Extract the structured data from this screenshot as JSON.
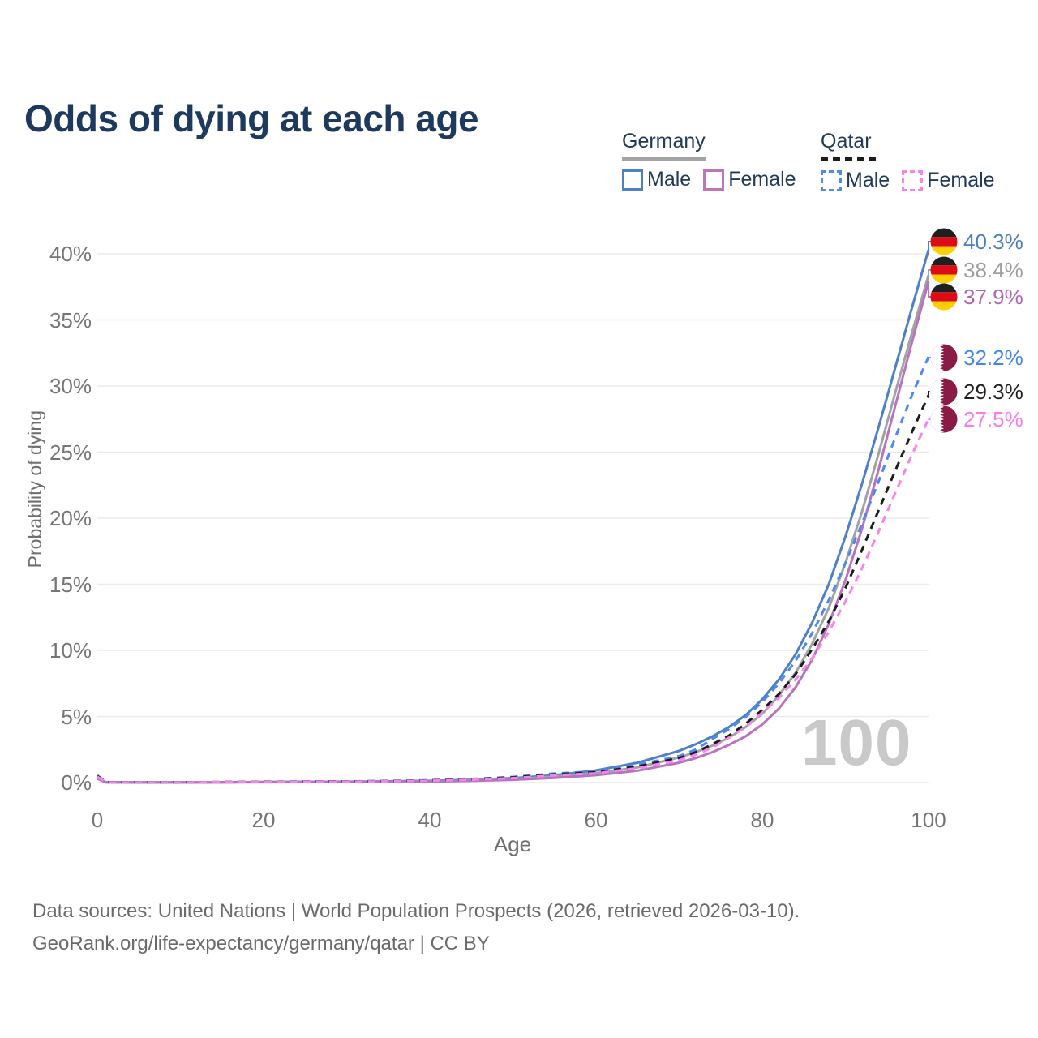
{
  "title": "Odds of dying at each age",
  "watermark_age": "100",
  "legend": {
    "groups": [
      {
        "name": "Germany",
        "line_style": "solid",
        "underline_color": "#a3a3a3",
        "items": [
          {
            "label": "Male",
            "color": "#4d80c6"
          },
          {
            "label": "Female",
            "color": "#bb76bd"
          }
        ]
      },
      {
        "name": "Qatar",
        "line_style": "dashed",
        "underline_color": "#1c1c1c",
        "items": [
          {
            "label": "Male",
            "color": "#4e88f2"
          },
          {
            "label": "Female",
            "color": "#fa82ec"
          }
        ]
      }
    ]
  },
  "axes": {
    "y_title": "Probability of dying",
    "x_title": "Age",
    "y_ticks": [
      {
        "label": "0%",
        "value": 0
      },
      {
        "label": "5%",
        "value": 5
      },
      {
        "label": "10%",
        "value": 10
      },
      {
        "label": "15%",
        "value": 15
      },
      {
        "label": "20%",
        "value": 20
      },
      {
        "label": "25%",
        "value": 25
      },
      {
        "label": "30%",
        "value": 30
      },
      {
        "label": "35%",
        "value": 35
      },
      {
        "label": "40%",
        "value": 40
      }
    ],
    "x_ticks": [
      {
        "label": "0",
        "value": 0
      },
      {
        "label": "20",
        "value": 20
      },
      {
        "label": "40",
        "value": 40
      },
      {
        "label": "60",
        "value": 60
      },
      {
        "label": "80",
        "value": 80
      },
      {
        "label": "100",
        "value": 100
      }
    ]
  },
  "flag_colors": {
    "germany": {
      "black": "#1f1f1f",
      "red": "#dd0b15",
      "gold": "#ffce00"
    },
    "qatar": {
      "maroon": "#8a1b45",
      "white": "#ffffff"
    }
  },
  "footer": {
    "line1": "Data sources: United Nations | World Population Prospects (2026, retrieved 2026-03-10).",
    "line2": "GeoRank.org/life-expectancy/germany/qatar | CC BY"
  },
  "chart_data": {
    "type": "line",
    "title": "Odds of dying at each age",
    "xlabel": "Age",
    "ylabel": "Probability of dying",
    "xlim": [
      0,
      100
    ],
    "ylim_percent": [
      0,
      40
    ],
    "grid": "horizontal",
    "legend_position": "top-right",
    "x_ages": [
      0,
      1,
      2,
      5,
      10,
      15,
      20,
      25,
      30,
      35,
      40,
      45,
      50,
      55,
      60,
      65,
      70,
      72,
      74,
      76,
      78,
      80,
      82,
      84,
      86,
      88,
      90,
      92,
      94,
      96,
      98,
      100
    ],
    "series": [
      {
        "id": "germany-male",
        "name": "Germany Male",
        "country": "Germany",
        "sex": "Male",
        "color": "#4d80c6",
        "dash": "solid",
        "flag": "germany",
        "end_label": "40.3%",
        "end_value_percent": 40.3,
        "end_label_color": "#4a7ec2",
        "values_percent": [
          0.38,
          0.03,
          0.02,
          0.01,
          0.01,
          0.02,
          0.05,
          0.06,
          0.07,
          0.09,
          0.13,
          0.21,
          0.34,
          0.56,
          0.92,
          1.5,
          2.4,
          2.9,
          3.5,
          4.2,
          5.1,
          6.3,
          7.8,
          9.7,
          12.1,
          15.0,
          18.6,
          22.6,
          26.9,
          31.4,
          35.9,
          40.3
        ]
      },
      {
        "id": "germany-all",
        "name": "Germany Both sexes",
        "country": "Germany",
        "sex": "Both",
        "color": "#a2a2a2",
        "dash": "solid",
        "flag": "germany",
        "end_label": "38.4%",
        "end_value_percent": 38.4,
        "end_label_color": "#9e9e9e",
        "values_percent": [
          0.33,
          0.025,
          0.018,
          0.009,
          0.009,
          0.015,
          0.035,
          0.045,
          0.055,
          0.07,
          0.1,
          0.16,
          0.27,
          0.44,
          0.72,
          1.15,
          1.9,
          2.3,
          2.8,
          3.4,
          4.2,
          5.2,
          6.6,
          8.3,
          10.5,
          13.2,
          16.6,
          20.5,
          24.9,
          29.5,
          34.0,
          38.4
        ]
      },
      {
        "id": "germany-female",
        "name": "Germany Female",
        "country": "Germany",
        "sex": "Female",
        "color": "#b873c0",
        "dash": "solid",
        "flag": "germany",
        "end_label": "37.9%",
        "end_value_percent": 37.9,
        "end_label_color": "#b163b5",
        "values_percent": [
          0.3,
          0.02,
          0.015,
          0.008,
          0.008,
          0.012,
          0.025,
          0.03,
          0.04,
          0.055,
          0.08,
          0.13,
          0.21,
          0.35,
          0.56,
          0.9,
          1.5,
          1.85,
          2.3,
          2.85,
          3.5,
          4.4,
          5.6,
          7.2,
          9.3,
          12.0,
          15.3,
          19.2,
          23.7,
          28.5,
          33.3,
          37.9
        ]
      },
      {
        "id": "qatar-male",
        "name": "Qatar Male",
        "country": "Qatar",
        "sex": "Male",
        "color": "#4e88f2",
        "dash": "dashed",
        "flag": "qatar",
        "end_label": "32.2%",
        "end_value_percent": 32.2,
        "end_label_color": "#4186f0",
        "values_percent": [
          0.55,
          0.04,
          0.03,
          0.02,
          0.02,
          0.045,
          0.075,
          0.085,
          0.095,
          0.125,
          0.18,
          0.27,
          0.43,
          0.69,
          0.85,
          1.35,
          2.0,
          2.5,
          3.3,
          4.05,
          4.95,
          6.1,
          7.5,
          9.2,
          11.3,
          13.8,
          16.6,
          19.6,
          22.8,
          26.1,
          29.3,
          32.2
        ]
      },
      {
        "id": "qatar-all",
        "name": "Qatar Both sexes",
        "country": "Qatar",
        "sex": "Both",
        "color": "#1c1c1c",
        "dash": "dashed",
        "flag": "qatar",
        "end_label": "29.3%",
        "end_value_percent": 29.3,
        "end_label_color": "#1f1f1f",
        "values_percent": [
          0.5,
          0.035,
          0.025,
          0.018,
          0.018,
          0.04,
          0.065,
          0.075,
          0.085,
          0.11,
          0.16,
          0.24,
          0.39,
          0.62,
          0.78,
          1.22,
          1.85,
          2.3,
          2.9,
          3.55,
          4.45,
          5.5,
          6.7,
          8.2,
          10.1,
          12.2,
          14.7,
          17.6,
          20.6,
          23.6,
          26.5,
          29.3
        ]
      },
      {
        "id": "qatar-female",
        "name": "Qatar Female",
        "country": "Qatar",
        "sex": "Female",
        "color": "#f982ec",
        "dash": "dashed",
        "flag": "qatar",
        "end_label": "27.5%",
        "end_value_percent": 27.5,
        "end_label_color": "#fa7cec",
        "values_percent": [
          0.45,
          0.03,
          0.02,
          0.015,
          0.015,
          0.035,
          0.055,
          0.065,
          0.075,
          0.095,
          0.14,
          0.21,
          0.34,
          0.55,
          0.7,
          1.1,
          1.7,
          2.1,
          2.65,
          3.4,
          4.2,
          5.3,
          6.4,
          7.8,
          9.4,
          11.4,
          13.7,
          16.2,
          19.0,
          21.9,
          24.8,
          27.5
        ]
      }
    ]
  }
}
